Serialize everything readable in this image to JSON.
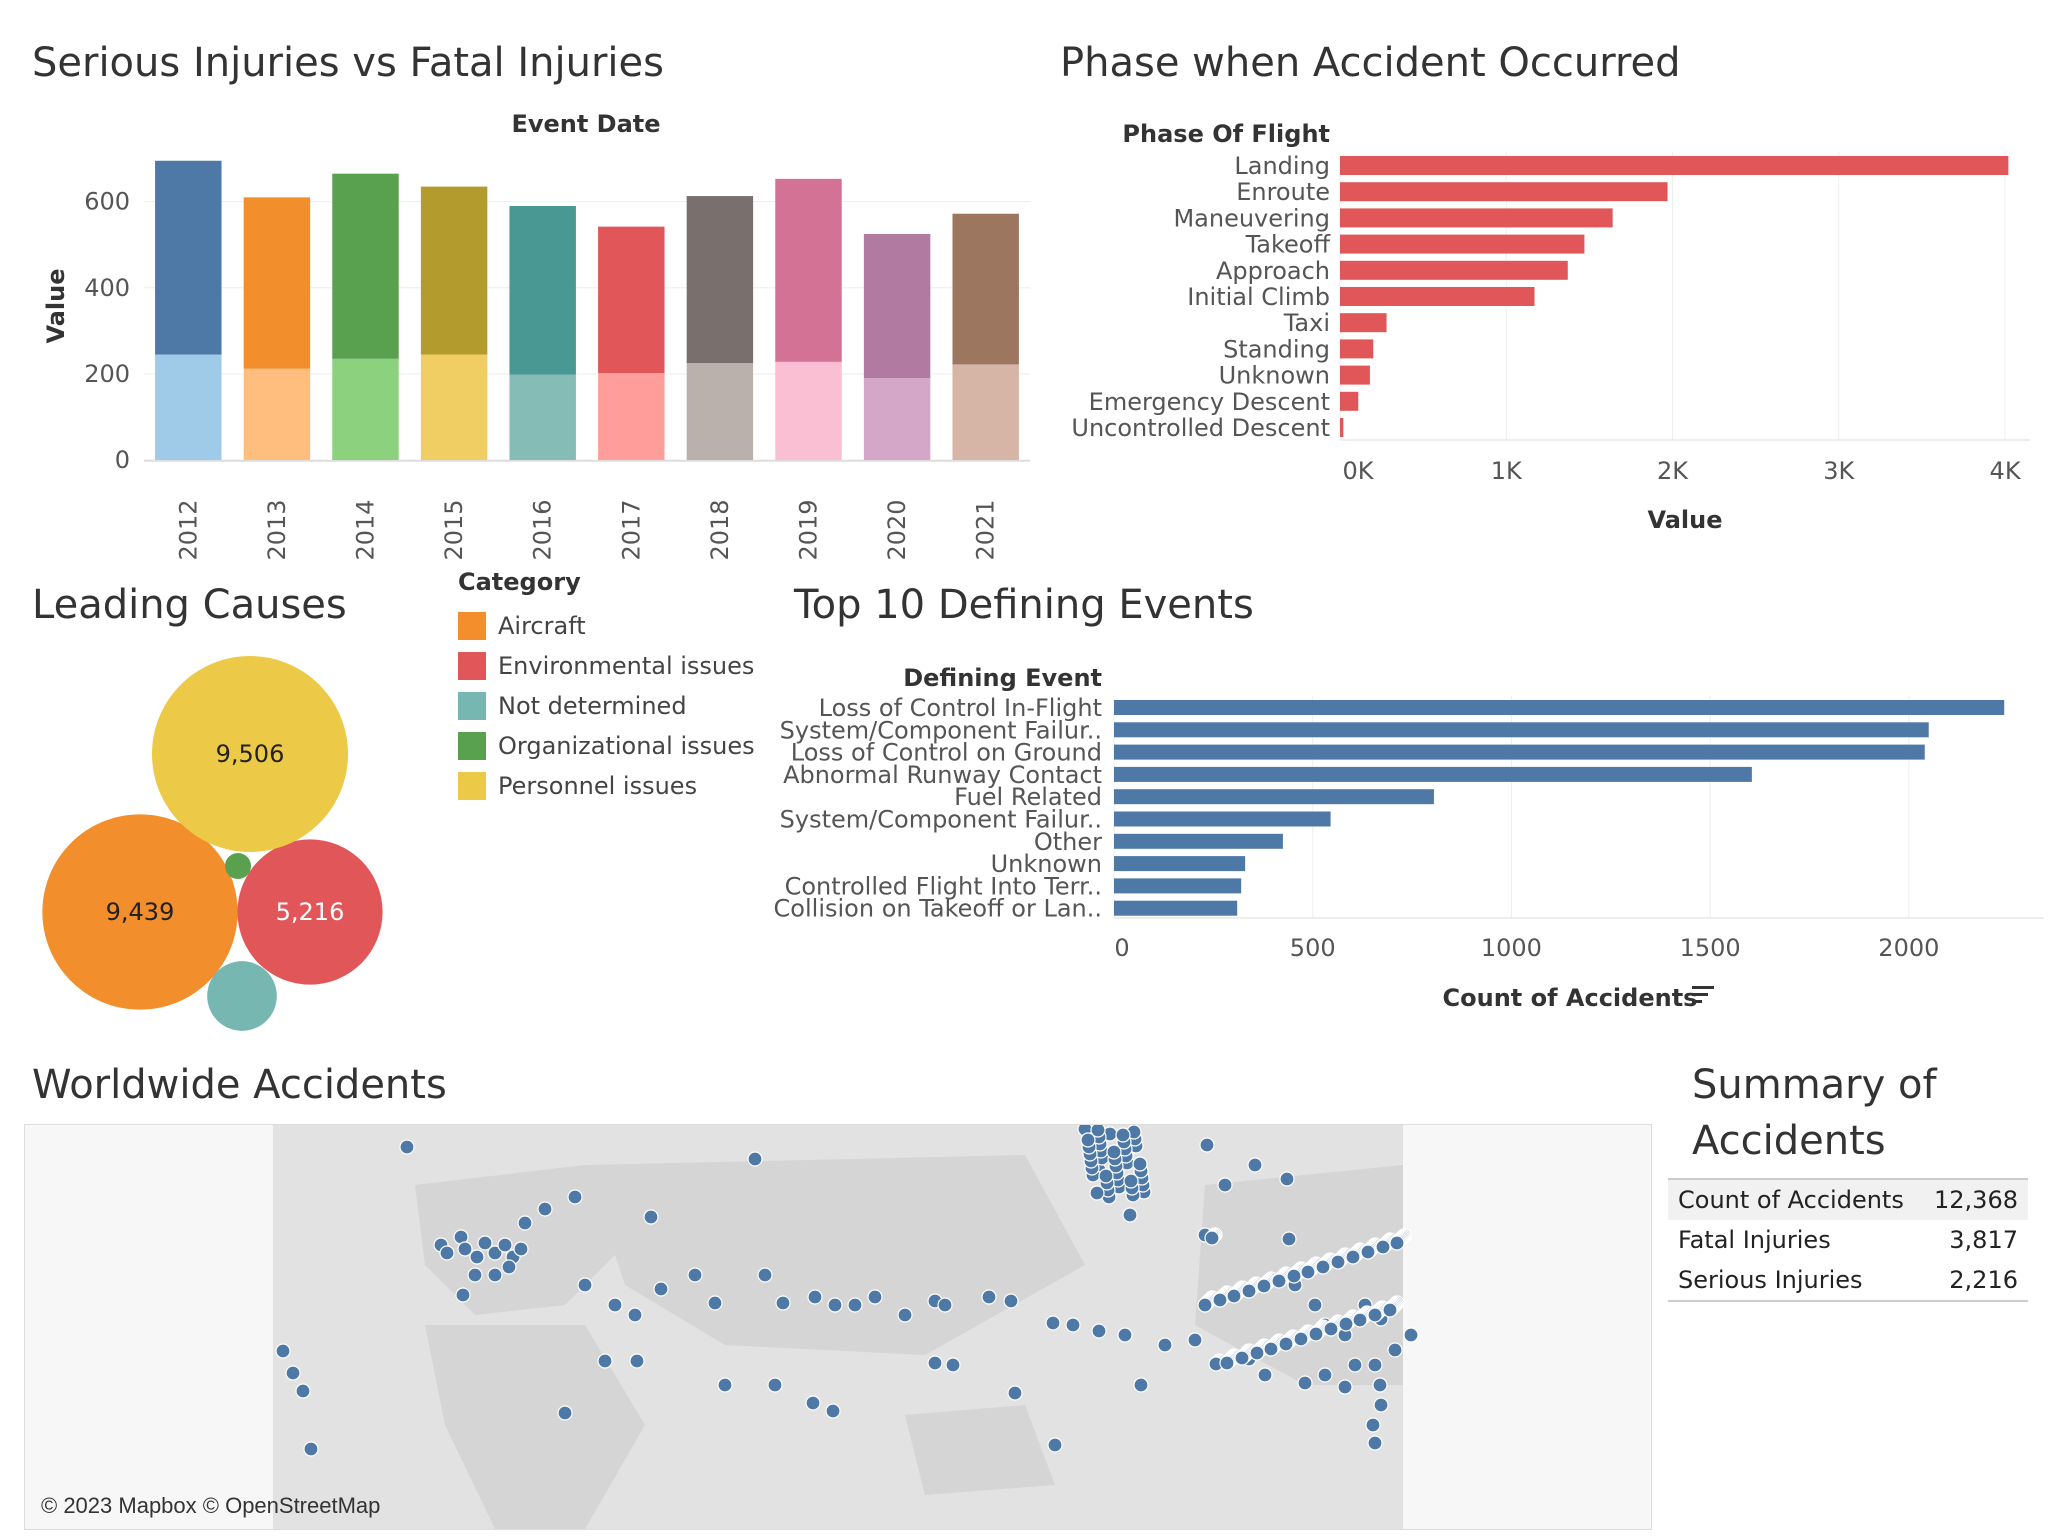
{
  "titles": {
    "injuries": "Serious Injuries vs Fatal Injuries",
    "phase": "Phase when Accident Occurred",
    "causes": "Leading Causes",
    "events": "Top 10 Defining Events",
    "worldwide": "Worldwide Accidents",
    "summary_line1": "Summary of",
    "summary_line2": "Accidents"
  },
  "chart_data": [
    {
      "type": "bar",
      "stacked": true,
      "title": "Serious Injuries vs Fatal Injuries",
      "xlabel": "Event Date",
      "ylabel": "Value",
      "categories": [
        "2012",
        "2013",
        "2014",
        "2015",
        "2016",
        "2017",
        "2018",
        "2019",
        "2020",
        "2021"
      ],
      "series": [
        {
          "values": [
            245,
            212,
            235,
            245,
            198,
            202,
            225,
            228,
            190,
            222
          ]
        },
        {
          "values": [
            450,
            398,
            430,
            390,
            392,
            340,
            388,
            425,
            335,
            350
          ]
        }
      ],
      "dark_colors": [
        "#4e79a7",
        "#f28e2b",
        "#59a14f",
        "#b39b2e",
        "#499894",
        "#e15759",
        "#79706e",
        "#d37295",
        "#b07aa1",
        "#9d7660"
      ],
      "light_colors": [
        "#a0cbe8",
        "#ffbe7d",
        "#8cd17d",
        "#f1ce63",
        "#86bcb6",
        "#ff9d9a",
        "#bab0ac",
        "#fabfd2",
        "#d4a6c8",
        "#d7b5a6"
      ],
      "yticks": [
        0,
        200,
        400,
        600
      ],
      "ylim": [
        0,
        720
      ]
    },
    {
      "type": "bar",
      "orientation": "horizontal",
      "title": "Phase when Accident Occurred",
      "ylabel": "Phase Of Flight",
      "xlabel": "Value",
      "categories": [
        "Landing",
        "Enroute",
        "Maneuvering",
        "Takeoff",
        "Approach",
        "Initial Climb",
        "Taxi",
        "Standing",
        "Unknown",
        "Emergency Descent",
        "Uncontrolled Descent"
      ],
      "values": [
        4020,
        1970,
        1640,
        1470,
        1370,
        1170,
        280,
        200,
        180,
        110,
        20
      ],
      "xticks": [
        "0K",
        "1K",
        "2K",
        "3K",
        "4K"
      ],
      "xlim": [
        0,
        4150
      ],
      "color": "#e15759"
    },
    {
      "type": "bubble",
      "title": "Leading Causes",
      "legend_title": "Category",
      "items": [
        {
          "name": "Aircraft",
          "value": 9439,
          "label": "9,439",
          "color": "#f28e2b"
        },
        {
          "name": "Environmental issues",
          "value": 5216,
          "label": "5,216",
          "color": "#e15759"
        },
        {
          "name": "Not determined",
          "value": 1200,
          "label": "",
          "color": "#76b7b2"
        },
        {
          "name": "Organizational issues",
          "value": 150,
          "label": "",
          "color": "#59a14f"
        },
        {
          "name": "Personnel issues",
          "value": 9506,
          "label": "9,506",
          "color": "#edc948"
        }
      ]
    },
    {
      "type": "bar",
      "orientation": "horizontal",
      "title": "Top 10 Defining Events",
      "ylabel": "Defining Event",
      "xlabel": "Count of Accidents",
      "categories": [
        "Loss of Control In-Flight",
        "System/Component Failur..",
        "Loss of Control on Ground",
        "Abnormal Runway Contact",
        "Fuel Related",
        "System/Component Failur..",
        "Other",
        "Unknown",
        "Controlled Flight Into Terr..",
        "Collision on Takeoff or Lan.."
      ],
      "values": [
        2240,
        2050,
        2040,
        1605,
        805,
        545,
        425,
        330,
        320,
        310
      ],
      "xticks": [
        0,
        500,
        1000,
        1500,
        2000
      ],
      "xlim": [
        0,
        2330
      ],
      "color": "#4e79a7"
    }
  ],
  "map": {
    "credit": "© 2023 Mapbox © OpenStreetMap",
    "point_color": "#4e79a7",
    "land_color": "#e2e2e2",
    "ocean_color": "#f7f7f7"
  },
  "summary": {
    "rows": [
      {
        "label": "Count of Accidents",
        "value": "12,368"
      },
      {
        "label": "Fatal Injuries",
        "value": "3,817"
      },
      {
        "label": "Serious Injuries",
        "value": "2,216"
      }
    ]
  }
}
